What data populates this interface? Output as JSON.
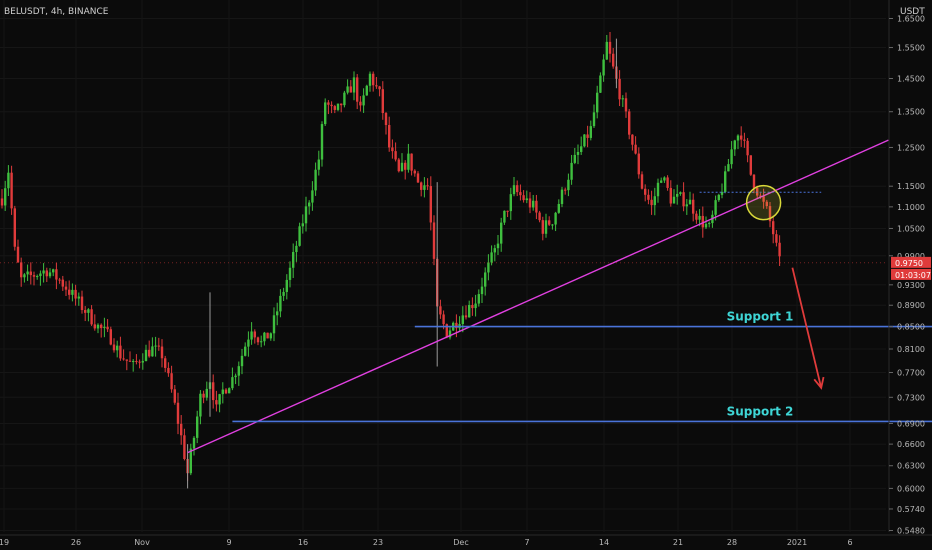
{
  "header": {
    "title": "BELUSDT, 4h, BINANCE",
    "currency": "USDT"
  },
  "colors": {
    "background": "#0b0b0b",
    "up": "#3fbf3f",
    "down": "#e03b3b",
    "trendline": "#e040e0",
    "support": "#4a73d9",
    "annotation_text": "#3fd6d6",
    "arrow": "#e03b3b",
    "circle": "#d9d93a",
    "price_badge": "#e03b3b"
  },
  "price_badges": {
    "last_price": "0.9750",
    "countdown": "01:03:07"
  },
  "chart_data": {
    "type": "candlestick",
    "x_axis": {
      "tick_labels": [
        "19",
        "26",
        "Nov",
        "9",
        "16",
        "23",
        "Dec",
        "7",
        "14",
        "21",
        "28",
        "2021",
        "6"
      ]
    },
    "y_axis": {
      "scale": "log",
      "ylim": [
        0.548,
        1.75
      ],
      "tick_labels": [
        "1.6500",
        "1.5500",
        "1.4500",
        "1.3500",
        "1.2500",
        "1.1500",
        "1.1000",
        "1.0500",
        "0.9900",
        "0.9300",
        "0.8900",
        "0.8500",
        "0.8100",
        "0.7700",
        "0.7300",
        "0.6900",
        "0.6600",
        "0.6300",
        "0.6000",
        "0.5740",
        "0.5480"
      ]
    },
    "price_path": [
      [
        0,
        1.12
      ],
      [
        2,
        1.19
      ],
      [
        4,
        1.0
      ],
      [
        6,
        0.94
      ],
      [
        10,
        0.95
      ],
      [
        14,
        0.96
      ],
      [
        18,
        0.94
      ],
      [
        22,
        0.91
      ],
      [
        26,
        0.88
      ],
      [
        30,
        0.85
      ],
      [
        34,
        0.83
      ],
      [
        37,
        0.8
      ],
      [
        41,
        0.78
      ],
      [
        44,
        0.8
      ],
      [
        47,
        0.81
      ],
      [
        50,
        0.8
      ],
      [
        53,
        0.74
      ],
      [
        56,
        0.67
      ],
      [
        58,
        0.62
      ],
      [
        60,
        0.67
      ],
      [
        62,
        0.73
      ],
      [
        65,
        0.76
      ],
      [
        67,
        0.71
      ],
      [
        69,
        0.74
      ],
      [
        72,
        0.76
      ],
      [
        75,
        0.8
      ],
      [
        78,
        0.85
      ],
      [
        81,
        0.82
      ],
      [
        84,
        0.84
      ],
      [
        87,
        0.9
      ],
      [
        90,
        0.96
      ],
      [
        93,
        1.04
      ],
      [
        96,
        1.12
      ],
      [
        99,
        1.22
      ],
      [
        101,
        1.38
      ],
      [
        104,
        1.34
      ],
      [
        107,
        1.39
      ],
      [
        110,
        1.44
      ],
      [
        112,
        1.35
      ],
      [
        115,
        1.46
      ],
      [
        118,
        1.4
      ],
      [
        121,
        1.25
      ],
      [
        124,
        1.18
      ],
      [
        127,
        1.22
      ],
      [
        130,
        1.16
      ],
      [
        133,
        1.15
      ],
      [
        136,
        0.88
      ],
      [
        139,
        0.84
      ],
      [
        142,
        0.86
      ],
      [
        145,
        0.88
      ],
      [
        148,
        0.9
      ],
      [
        151,
        0.95
      ],
      [
        154,
        1.0
      ],
      [
        157,
        1.08
      ],
      [
        160,
        1.14
      ],
      [
        163,
        1.12
      ],
      [
        166,
        1.1
      ],
      [
        169,
        1.05
      ],
      [
        172,
        1.07
      ],
      [
        175,
        1.13
      ],
      [
        178,
        1.2
      ],
      [
        181,
        1.25
      ],
      [
        184,
        1.3
      ],
      [
        187,
        1.44
      ],
      [
        189,
        1.56
      ],
      [
        191,
        1.48
      ],
      [
        194,
        1.37
      ],
      [
        197,
        1.26
      ],
      [
        200,
        1.15
      ],
      [
        203,
        1.1
      ],
      [
        206,
        1.18
      ],
      [
        209,
        1.12
      ],
      [
        212,
        1.12
      ],
      [
        215,
        1.11
      ],
      [
        218,
        1.07
      ],
      [
        221,
        1.05
      ],
      [
        223,
        1.1
      ],
      [
        226,
        1.17
      ],
      [
        229,
        1.28
      ],
      [
        231,
        1.29
      ],
      [
        234,
        1.18
      ],
      [
        237,
        1.12
      ],
      [
        239,
        1.09
      ],
      [
        241,
        1.04
      ],
      [
        243,
        0.975
      ]
    ],
    "trendline": {
      "from": {
        "x": 58,
        "y": 0.648
      },
      "to": {
        "x": 277,
        "y": 1.27
      }
    },
    "supports": [
      {
        "label": "Support 1",
        "y": 0.85,
        "x_start": 129,
        "x_end": 293
      },
      {
        "label": "Support 2",
        "y": 0.693,
        "x_start": 72,
        "x_end": 293
      }
    ],
    "resistance_dotted": {
      "y": 1.135,
      "x_start": 218,
      "x_end": 256
    },
    "arrow": {
      "from": {
        "x": 247,
        "y": 0.965
      },
      "to": {
        "x": 256,
        "y": 0.745
      }
    },
    "circle": {
      "x": 238,
      "y": 1.11
    }
  }
}
